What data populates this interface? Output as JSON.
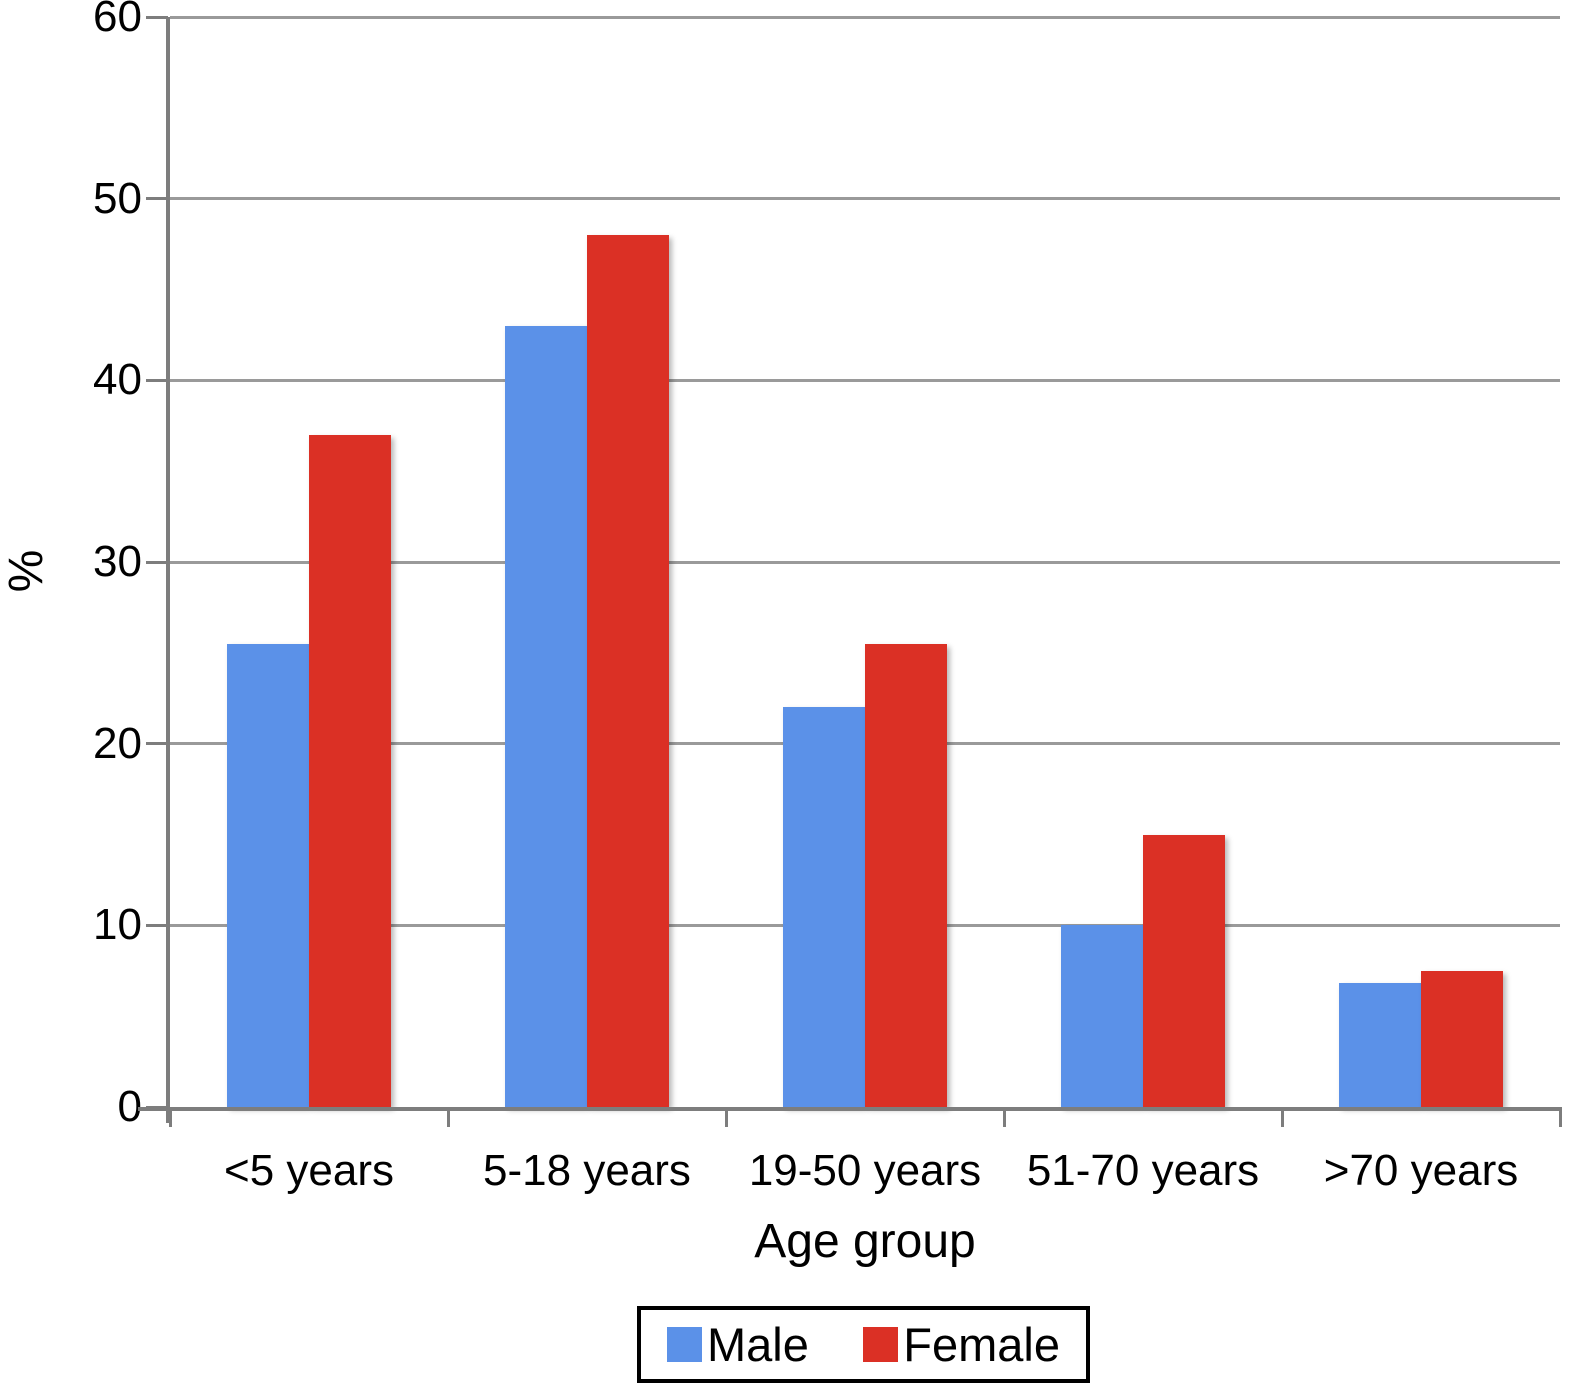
{
  "chart_data": {
    "type": "bar",
    "categories": [
      "<5 years",
      "5-18 years",
      "19-50 years",
      "51-70 years",
      ">70 years"
    ],
    "series": [
      {
        "name": "Male",
        "color": "#5B91E8",
        "values": [
          25.5,
          43,
          22,
          10,
          6.8
        ]
      },
      {
        "name": "Female",
        "color": "#DB3025",
        "values": [
          37,
          48,
          25.5,
          15,
          7.5
        ]
      }
    ],
    "title": "",
    "xlabel": "Age group",
    "ylabel": "%",
    "ylim": [
      0,
      60
    ],
    "ytick_step": 10,
    "yticks": [
      "0",
      "10",
      "20",
      "30",
      "40",
      "50",
      "60"
    ],
    "grid": true,
    "legend_position": "bottom"
  },
  "legend": {
    "items": [
      {
        "label": "Male",
        "color": "#5B91E8",
        "swatch": "legend-swatch-male"
      },
      {
        "label": "Female",
        "color": "#DB3025",
        "swatch": "legend-swatch-female"
      }
    ]
  },
  "colors": {
    "male": "#5B91E8",
    "female": "#DB3025",
    "gridline": "#9a9a9a",
    "axis": "#7d7d7d",
    "text": "#000000",
    "background": "#ffffff"
  }
}
